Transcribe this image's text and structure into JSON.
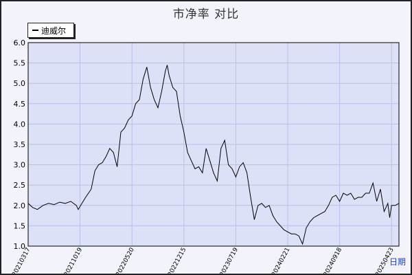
{
  "title": "市净率  对比",
  "chart_data": {
    "type": "line",
    "title": "市净率  对比",
    "xlabel": "日期",
    "ylabel": "",
    "ylim": [
      1.0,
      6.0
    ],
    "yticks": [
      "1.0",
      "1.5",
      "2.0",
      "2.5",
      "3.0",
      "3.5",
      "4.0",
      "4.5",
      "5.0",
      "5.5",
      "6.0"
    ],
    "xticks": [
      "20210317",
      "20211019",
      "20220520",
      "20221215",
      "20230719",
      "20240221",
      "20240918",
      "20250423"
    ],
    "xtick_positions": [
      0,
      0.14,
      0.28,
      0.42,
      0.56,
      0.7,
      0.84,
      0.98
    ],
    "grid": true,
    "legend_position": "top-left",
    "colors": {
      "line": "#000000",
      "plot_bg": "#dde1f7",
      "grid": "#b8c0e8"
    },
    "series": [
      {
        "name": "迪威尔",
        "x": [
          0.0,
          0.012,
          0.025,
          0.04,
          0.055,
          0.07,
          0.085,
          0.1,
          0.115,
          0.13,
          0.135,
          0.145,
          0.155,
          0.17,
          0.18,
          0.19,
          0.2,
          0.21,
          0.22,
          0.23,
          0.24,
          0.25,
          0.26,
          0.27,
          0.28,
          0.29,
          0.3,
          0.31,
          0.32,
          0.33,
          0.34,
          0.35,
          0.36,
          0.37,
          0.375,
          0.38,
          0.39,
          0.4,
          0.41,
          0.42,
          0.43,
          0.44,
          0.45,
          0.46,
          0.47,
          0.48,
          0.49,
          0.5,
          0.51,
          0.52,
          0.53,
          0.54,
          0.55,
          0.56,
          0.57,
          0.58,
          0.59,
          0.6,
          0.61,
          0.62,
          0.63,
          0.64,
          0.65,
          0.66,
          0.67,
          0.68,
          0.69,
          0.7,
          0.71,
          0.72,
          0.73,
          0.74,
          0.75,
          0.76,
          0.77,
          0.78,
          0.79,
          0.8,
          0.81,
          0.82,
          0.83,
          0.84,
          0.845,
          0.85,
          0.86,
          0.87,
          0.88,
          0.89,
          0.9,
          0.91,
          0.92,
          0.93,
          0.94,
          0.95,
          0.96,
          0.97,
          0.975,
          0.98,
          0.99,
          1.0
        ],
        "values": [
          2.05,
          1.95,
          1.9,
          2.0,
          2.05,
          2.02,
          2.08,
          2.05,
          2.1,
          2.0,
          1.9,
          2.05,
          2.2,
          2.4,
          2.85,
          3.0,
          3.05,
          3.2,
          3.4,
          3.3,
          2.95,
          3.8,
          3.9,
          4.1,
          4.2,
          4.5,
          4.6,
          5.1,
          5.4,
          4.9,
          4.6,
          4.4,
          4.8,
          5.3,
          5.45,
          5.2,
          4.9,
          4.8,
          4.2,
          3.8,
          3.3,
          3.1,
          2.9,
          2.95,
          2.8,
          3.4,
          3.1,
          2.8,
          2.6,
          3.4,
          3.6,
          3.0,
          2.9,
          2.7,
          2.95,
          3.05,
          2.8,
          2.2,
          1.65,
          2.0,
          2.05,
          1.95,
          2.0,
          1.75,
          1.6,
          1.5,
          1.4,
          1.35,
          1.3,
          1.3,
          1.25,
          1.05,
          1.45,
          1.6,
          1.7,
          1.75,
          1.8,
          1.85,
          2.0,
          2.2,
          2.25,
          2.1,
          2.2,
          2.3,
          2.25,
          2.3,
          2.15,
          2.2,
          2.2,
          2.3,
          2.3,
          2.55,
          2.1,
          2.4,
          1.85,
          2.05,
          1.7,
          2.0,
          2.0,
          2.05
        ]
      }
    ]
  },
  "legend": {
    "label": "迪威尔"
  }
}
